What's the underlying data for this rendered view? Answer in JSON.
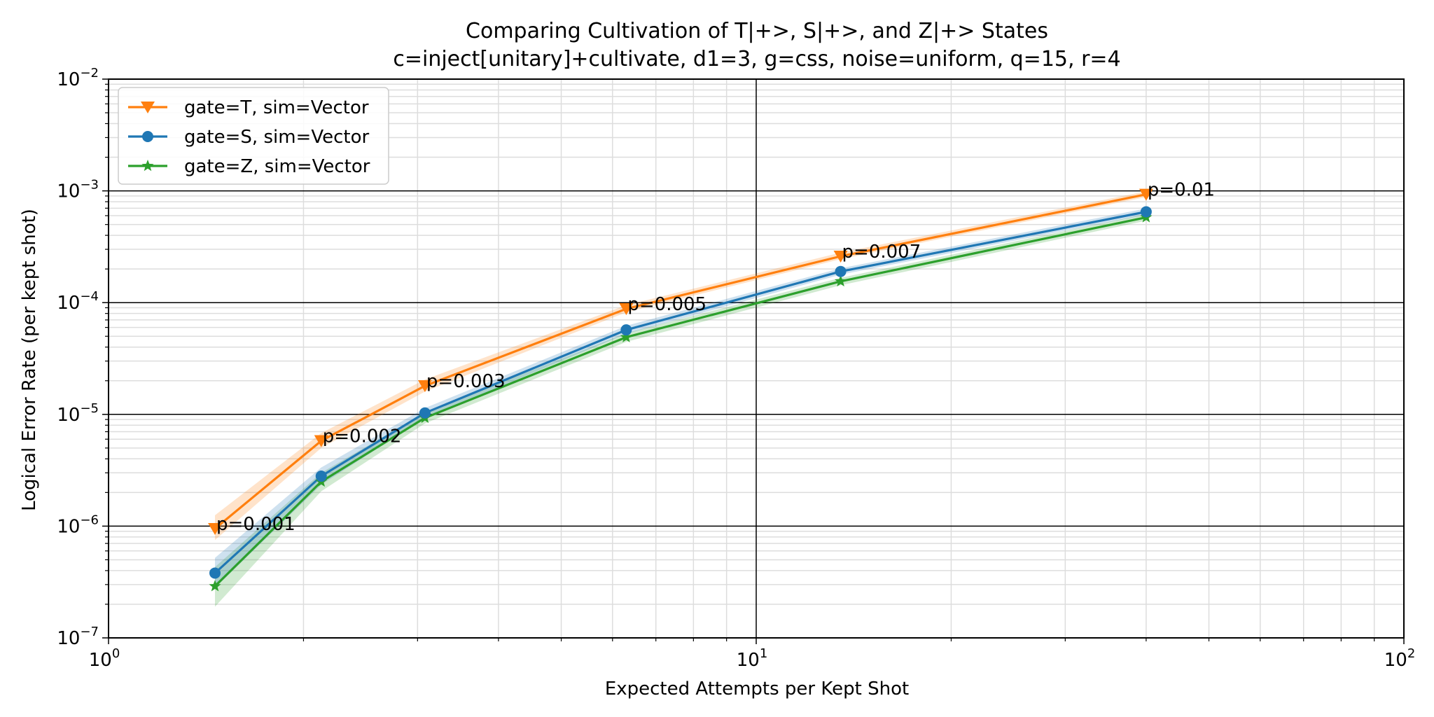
{
  "chart_data": {
    "type": "line",
    "title": "Comparing Cultivation of T|+>, S|+>, and Z|+> States",
    "subtitle": "c=inject[unitary]+cultivate, d1=3, g=css, noise=uniform, q=15, r=4",
    "xlabel": "Expected Attempts per Kept Shot",
    "ylabel": "Logical Error Rate (per kept shot)",
    "xscale": "log",
    "yscale": "log",
    "xlim": [
      1,
      100
    ],
    "ylim": [
      1e-07,
      0.01
    ],
    "x_ticks": [
      {
        "base": "10",
        "exp": "0",
        "value": 1
      },
      {
        "base": "10",
        "exp": "1",
        "value": 10
      },
      {
        "base": "10",
        "exp": "2",
        "value": 100
      }
    ],
    "y_ticks": [
      {
        "base": "10",
        "exp": "−7",
        "value": 1e-07
      },
      {
        "base": "10",
        "exp": "−6",
        "value": 1e-06
      },
      {
        "base": "10",
        "exp": "−5",
        "value": 1e-05
      },
      {
        "base": "10",
        "exp": "−4",
        "value": 0.0001
      },
      {
        "base": "10",
        "exp": "−3",
        "value": 0.001
      },
      {
        "base": "10",
        "exp": "−2",
        "value": 0.01
      }
    ],
    "grid": true,
    "legend_position": "top-left",
    "series": [
      {
        "name": "gate=T, sim=Vector",
        "color": "#ff7f0e",
        "marker": "triangle-down",
        "x": [
          1.46,
          2.13,
          3.08,
          6.3,
          13.5,
          40.0
        ],
        "y": [
          9.5e-07,
          5.8e-06,
          1.8e-05,
          8.8e-05,
          0.00026,
          0.00093
        ],
        "y_low": [
          7.5e-07,
          5e-06,
          1.6e-05,
          8.2e-05,
          0.000245,
          0.00088
        ],
        "y_high": [
          1.25e-06,
          6.8e-06,
          2.05e-05,
          9.5e-05,
          0.00028,
          0.00099
        ]
      },
      {
        "name": "gate=S, sim=Vector",
        "color": "#1f77b4",
        "marker": "circle",
        "x": [
          1.46,
          2.13,
          3.08,
          6.3,
          13.5,
          40.0
        ],
        "y": [
          3.8e-07,
          2.8e-06,
          1.03e-05,
          5.7e-05,
          0.00019,
          0.00065
        ],
        "y_low": [
          2.8e-07,
          2.35e-06,
          9.3e-06,
          5.25e-05,
          0.000178,
          0.00061
        ],
        "y_high": [
          5.2e-07,
          3.35e-06,
          1.14e-05,
          6.2e-05,
          0.000203,
          0.000695
        ]
      },
      {
        "name": "gate=Z, sim=Vector",
        "color": "#2ca02c",
        "marker": "star",
        "x": [
          1.46,
          2.13,
          3.08,
          6.3,
          13.5,
          40.0
        ],
        "y": [
          2.9e-07,
          2.5e-06,
          9.3e-06,
          4.9e-05,
          0.000155,
          0.00058
        ],
        "y_low": [
          1.9e-07,
          2.05e-06,
          8.3e-06,
          4.45e-05,
          0.000143,
          0.00054
        ],
        "y_high": [
          4.3e-07,
          3e-06,
          1.04e-05,
          5.35e-05,
          0.000167,
          0.00062
        ]
      }
    ],
    "annotations": [
      {
        "text": "p=0.001",
        "x": 1.46,
        "y": 9.5e-07
      },
      {
        "text": "p=0.002",
        "x": 2.13,
        "y": 5.8e-06
      },
      {
        "text": "p=0.003",
        "x": 3.08,
        "y": 1.8e-05
      },
      {
        "text": "p=0.005",
        "x": 6.3,
        "y": 8.8e-05
      },
      {
        "text": "p=0.007",
        "x": 13.5,
        "y": 0.00026
      },
      {
        "text": "p=0.01",
        "x": 40.0,
        "y": 0.00093
      }
    ]
  }
}
